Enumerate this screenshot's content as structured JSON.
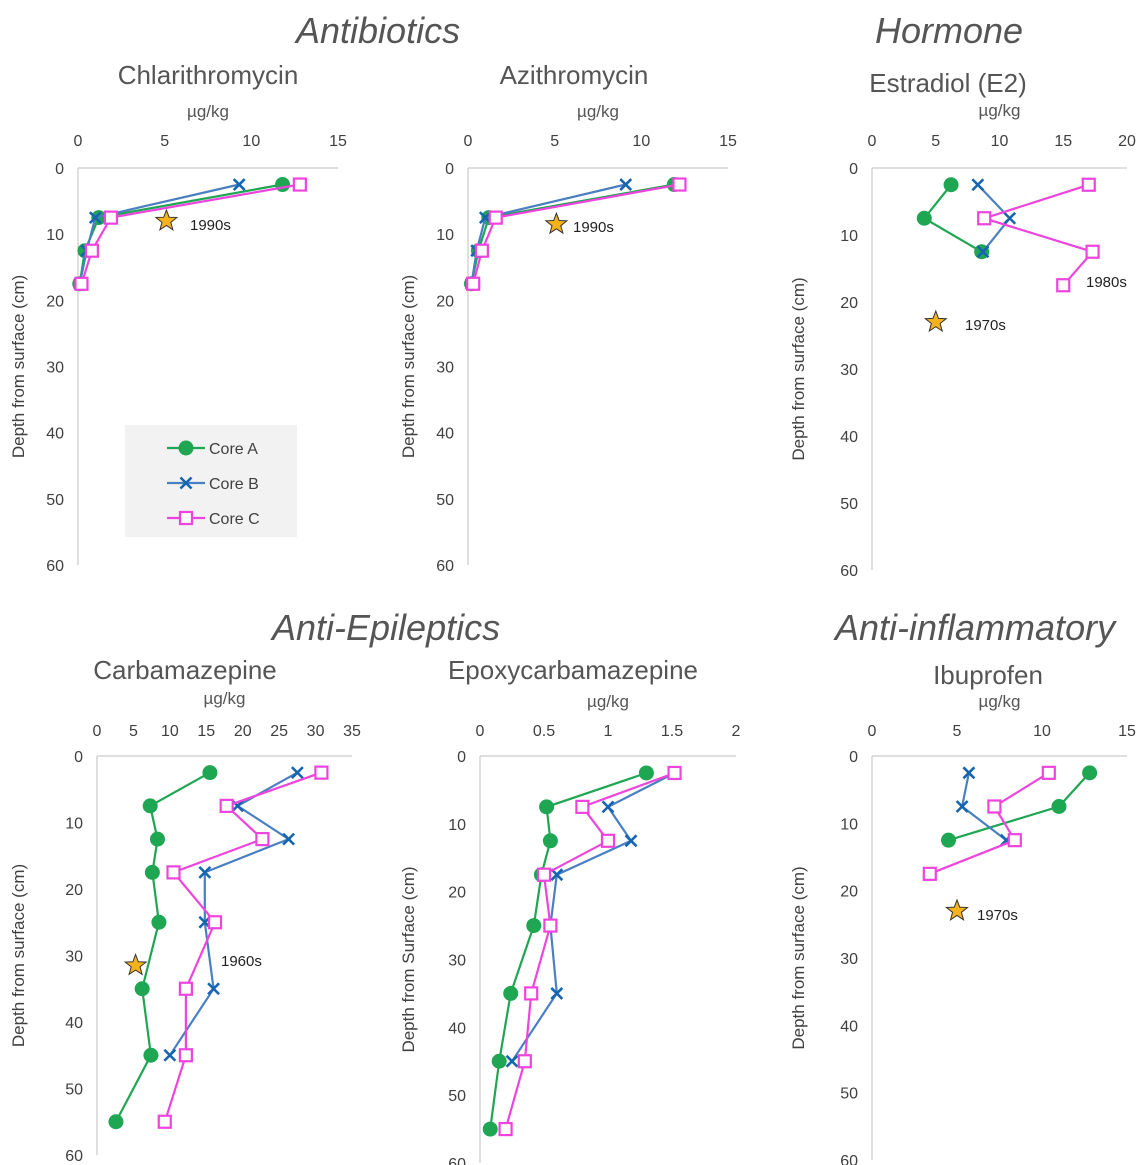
{
  "groups": {
    "antibiotics": "Antibiotics",
    "hormone": "Hormone",
    "anti_epileptics": "Anti-Epileptics",
    "anti_inflammatory": "Anti-inflammatory"
  },
  "legend": [
    "Core A",
    "Core B",
    "Core C"
  ],
  "colors": {
    "core_a": "#1fa653",
    "core_b": "#1565b0",
    "core_c": "#ee44dd",
    "star": "#f5b21c"
  },
  "chart_data": [
    {
      "type": "line",
      "title": "Chlarithromycin",
      "xlabel": "µg/kg",
      "ylabel": "Depth from surface (cm)",
      "xlim": [
        0,
        15
      ],
      "xticks": [
        0,
        5,
        10,
        15
      ],
      "ylim": [
        0,
        60
      ],
      "yticks": [
        0,
        10,
        20,
        30,
        40,
        50,
        60
      ],
      "series": [
        {
          "name": "Core A",
          "x": [
            11.8,
            1.2,
            0.4,
            0.1
          ],
          "y": [
            2.5,
            7.5,
            12.5,
            17.5
          ]
        },
        {
          "name": "Core B",
          "x": [
            9.3,
            1.0,
            0.5,
            0.1
          ],
          "y": [
            2.5,
            7.5,
            12.5,
            17.5
          ]
        },
        {
          "name": "Core C",
          "x": [
            12.8,
            1.9,
            0.8,
            0.2
          ],
          "y": [
            2.5,
            7.5,
            12.5,
            17.5
          ]
        }
      ],
      "annotations": [
        {
          "text": "1990s",
          "x": 5.1,
          "y": 8
        }
      ],
      "legend": "lower-center"
    },
    {
      "type": "line",
      "title": "Azithromycin",
      "xlabel": "µg/kg",
      "ylabel": "Depth from surface (cm)",
      "xlim": [
        0,
        15
      ],
      "xticks": [
        0,
        5,
        10,
        15
      ],
      "ylim": [
        0,
        60
      ],
      "yticks": [
        0,
        10,
        20,
        30,
        40,
        50,
        60
      ],
      "series": [
        {
          "name": "Core A",
          "x": [
            11.9,
            1.2,
            0.6,
            0.2
          ],
          "y": [
            2.5,
            7.5,
            12.5,
            17.5
          ]
        },
        {
          "name": "Core B",
          "x": [
            9.1,
            1.0,
            0.5,
            0.2
          ],
          "y": [
            2.5,
            7.5,
            12.5,
            17.5
          ]
        },
        {
          "name": "Core C",
          "x": [
            12.2,
            1.6,
            0.8,
            0.3
          ],
          "y": [
            2.5,
            7.5,
            12.5,
            17.5
          ]
        }
      ],
      "annotations": [
        {
          "text": "1990s",
          "x": 5.1,
          "y": 8.5
        }
      ]
    },
    {
      "type": "line",
      "title": "Estradiol (E2)",
      "xlabel": "µg/kg",
      "ylabel": "Depth from surface (cm)",
      "xlim": [
        0,
        20
      ],
      "xticks": [
        0,
        5,
        10,
        15,
        20
      ],
      "ylim": [
        0,
        60
      ],
      "yticks": [
        0,
        10,
        20,
        30,
        40,
        50,
        60
      ],
      "series": [
        {
          "name": "Core A",
          "x": [
            6.2,
            4.1,
            8.6
          ],
          "y": [
            2.5,
            7.5,
            12.5
          ]
        },
        {
          "name": "Core B",
          "x": [
            8.3,
            10.8,
            8.7
          ],
          "y": [
            2.5,
            7.5,
            12.5
          ]
        },
        {
          "name": "Core C",
          "x": [
            17.0,
            8.8,
            17.3,
            15.0
          ],
          "y": [
            2.5,
            7.5,
            12.5,
            17.5
          ]
        }
      ],
      "annotations": [
        {
          "text": "1970s",
          "x": 5.0,
          "y": 23
        },
        {
          "text": "1980s",
          "x": null,
          "y": 17
        }
      ]
    },
    {
      "type": "line",
      "title": "Carbamazepine",
      "xlabel": "µg/kg",
      "ylabel": "Depth from surface (cm)",
      "xlim": [
        0,
        35
      ],
      "xticks": [
        0,
        5,
        10,
        15,
        20,
        25,
        30,
        35
      ],
      "ylim": [
        0,
        60
      ],
      "yticks": [
        0,
        10,
        20,
        30,
        40,
        50,
        60
      ],
      "series": [
        {
          "name": "Core A",
          "x": [
            15.5,
            7.3,
            8.3,
            7.6,
            8.5,
            6.2,
            7.4,
            2.6
          ],
          "y": [
            2.5,
            7.5,
            12.5,
            17.5,
            25,
            35,
            45,
            55
          ]
        },
        {
          "name": "Core B",
          "x": [
            27.5,
            19.3,
            26.3,
            14.8,
            14.8,
            16.0,
            10.0
          ],
          "y": [
            2.5,
            7.5,
            12.5,
            17.5,
            25,
            35,
            45
          ]
        },
        {
          "name": "Core C",
          "x": [
            30.8,
            17.8,
            22.7,
            10.5,
            16.2,
            12.2,
            12.2,
            9.3
          ],
          "y": [
            2.5,
            7.5,
            12.5,
            17.5,
            25,
            35,
            45,
            55
          ]
        }
      ],
      "annotations": [
        {
          "text": "1960s",
          "x": 5.3,
          "y": 31.5
        }
      ]
    },
    {
      "type": "line",
      "title": "Epoxycarbamazepine",
      "xlabel": "µg/kg",
      "ylabel": "Depth from Surface (cm)",
      "xlim": [
        0,
        2
      ],
      "xticks": [
        "0",
        "0.5",
        "1",
        "1.5",
        "2"
      ],
      "ylim": [
        0,
        60
      ],
      "yticks": [
        0,
        10,
        20,
        30,
        40,
        50,
        60
      ],
      "series": [
        {
          "name": "Core A",
          "x": [
            1.3,
            0.52,
            0.55,
            0.48,
            0.42,
            0.24,
            0.15,
            0.08
          ],
          "y": [
            2.5,
            7.5,
            12.5,
            17.5,
            25,
            35,
            45,
            55
          ]
        },
        {
          "name": "Core B",
          "x": [
            1.52,
            1.0,
            1.18,
            0.6,
            0.55,
            0.6,
            0.25
          ],
          "y": [
            2.5,
            7.5,
            12.5,
            17.5,
            25,
            35,
            45
          ]
        },
        {
          "name": "Core C",
          "x": [
            1.52,
            0.8,
            1.0,
            0.5,
            0.55,
            0.4,
            0.35,
            0.2
          ],
          "y": [
            2.5,
            7.5,
            12.5,
            17.5,
            25,
            35,
            45,
            55
          ]
        }
      ]
    },
    {
      "type": "line",
      "title": "Ibuprofen",
      "xlabel": "µg/kg",
      "ylabel": "Depth from surface (cm)",
      "xlim": [
        0,
        15
      ],
      "xticks": [
        0,
        5,
        10,
        15
      ],
      "ylim": [
        0,
        60
      ],
      "yticks": [
        0,
        10,
        20,
        30,
        40,
        50,
        60
      ],
      "series": [
        {
          "name": "Core A",
          "x": [
            12.8,
            11.0,
            4.5
          ],
          "y": [
            2.5,
            7.5,
            12.5
          ]
        },
        {
          "name": "Core B",
          "x": [
            5.7,
            5.3,
            7.9
          ],
          "y": [
            2.5,
            7.5,
            12.5
          ]
        },
        {
          "name": "Core C",
          "x": [
            10.4,
            7.2,
            8.4,
            3.4
          ],
          "y": [
            2.5,
            7.5,
            12.5,
            17.5
          ]
        }
      ],
      "annotations": [
        {
          "text": "1970s",
          "x": 5.0,
          "y": 23
        }
      ]
    }
  ]
}
